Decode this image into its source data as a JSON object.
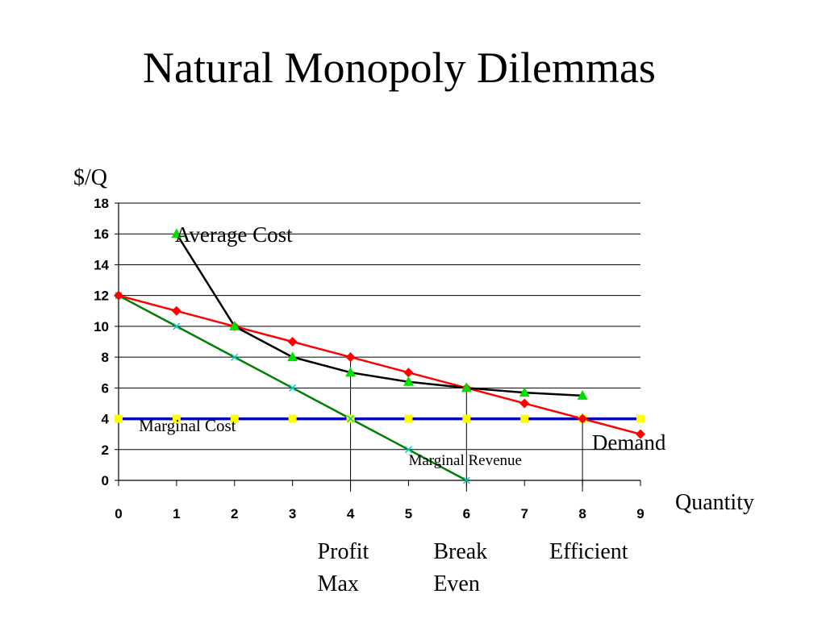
{
  "title": "Natural Monopoly Dilemmas",
  "chart_data": {
    "type": "line",
    "ylabel": "$/Q",
    "xlabel": "Quantity",
    "xlim": [
      0,
      9
    ],
    "ylim": [
      0,
      18
    ],
    "x_ticks": [
      "0",
      "1",
      "2",
      "3",
      "4",
      "5",
      "6",
      "7",
      "8",
      "9"
    ],
    "y_ticks": [
      "0",
      "2",
      "4",
      "6",
      "8",
      "10",
      "12",
      "14",
      "16",
      "18"
    ],
    "grid": "horizontal",
    "series": [
      {
        "name": "Average Cost",
        "marker": "triangle",
        "color": "#000000",
        "marker_color": "#00e000",
        "points": [
          [
            1,
            16
          ],
          [
            2,
            10
          ],
          [
            3,
            8
          ],
          [
            4,
            7
          ],
          [
            5,
            6.4
          ],
          [
            6,
            6
          ],
          [
            7,
            5.7
          ],
          [
            8,
            5.5
          ]
        ]
      },
      {
        "name": "Demand",
        "marker": "diamond",
        "color": "#ff0000",
        "marker_color": "#ff0000",
        "points": [
          [
            0,
            12
          ],
          [
            1,
            11
          ],
          [
            2,
            10
          ],
          [
            3,
            9
          ],
          [
            4,
            8
          ],
          [
            5,
            7
          ],
          [
            6,
            6
          ],
          [
            7,
            5
          ],
          [
            8,
            4
          ],
          [
            9,
            3
          ]
        ]
      },
      {
        "name": "Marginal Revenue",
        "marker": "x",
        "color": "#008000",
        "marker_color": "#00cccc",
        "points": [
          [
            0,
            12
          ],
          [
            1,
            10
          ],
          [
            2,
            8
          ],
          [
            3,
            6
          ],
          [
            4,
            4
          ],
          [
            5,
            2
          ],
          [
            6,
            0
          ]
        ]
      },
      {
        "name": "Marginal Cost",
        "marker": "square",
        "color": "#0000b0",
        "marker_color": "#ffff00",
        "points": [
          [
            0,
            4
          ],
          [
            1,
            4
          ],
          [
            2,
            4
          ],
          [
            3,
            4
          ],
          [
            4,
            4
          ],
          [
            5,
            4
          ],
          [
            6,
            4
          ],
          [
            7,
            4
          ],
          [
            8,
            4
          ],
          [
            9,
            4
          ]
        ]
      }
    ],
    "annotations": [
      {
        "text": "Average Cost",
        "x": 1,
        "y": 16
      },
      {
        "text": "Marginal Cost",
        "x": 0.35,
        "y": 3.2
      },
      {
        "text": "Demand",
        "x": 8.8,
        "y": 2
      },
      {
        "text": "Marginal Revenue",
        "x": 5,
        "y": 1
      }
    ],
    "markers": [
      {
        "x": 4,
        "y": 8,
        "label_lines": [
          "Profit",
          "Max"
        ]
      },
      {
        "x": 6,
        "y": 6,
        "label_lines": [
          "Break",
          "Even"
        ]
      },
      {
        "x": 8,
        "y": 4,
        "label_lines": [
          "Efficient"
        ]
      }
    ]
  }
}
